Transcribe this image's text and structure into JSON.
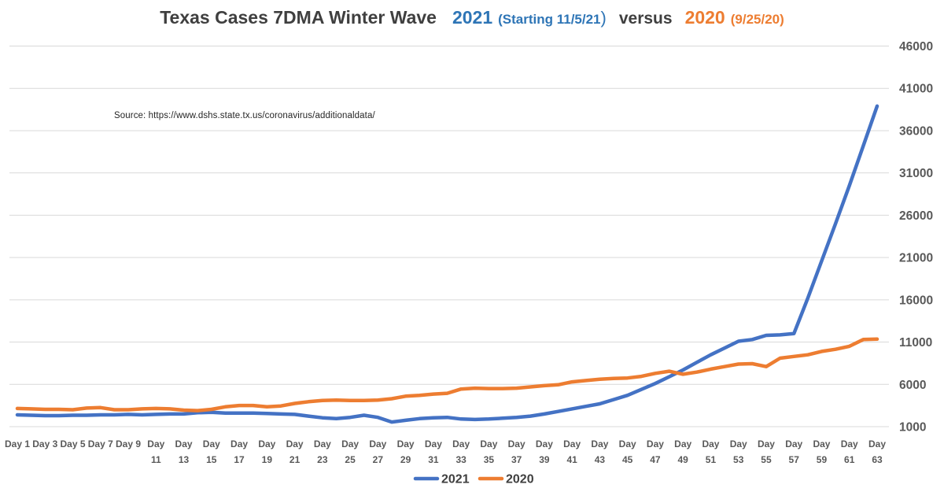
{
  "title": {
    "main": "Texas Cases 7DMA Winter Wave",
    "year1": "2021",
    "note1": "(Starting 11/5/21",
    "paren1": ")",
    "versus": "versus",
    "year2": "2020",
    "note2": "(9/25/20)"
  },
  "source_note": "Source:  https://www.dshs.state.tx.us/coronavirus/additionaldata/",
  "colors": {
    "series_2021": "#4472C4",
    "series_2020": "#ED7D31",
    "title_blue": "#2E75B6",
    "title_orange": "#ED7D31",
    "title_gray": "#3F3F3F",
    "axis_text": "#595959",
    "gridline": "#D9D9D9"
  },
  "chart_data": {
    "type": "line",
    "title": "Texas Cases 7DMA Winter Wave 2021 (Starting 11/5/21) versus 2020 (9/25/20)",
    "xlabel": "",
    "ylabel": "",
    "grid": true,
    "legend_position": "bottom",
    "x_label_prefix": "Day",
    "days": 63,
    "x_tick_days": [
      1,
      3,
      5,
      7,
      9,
      11,
      13,
      15,
      17,
      19,
      21,
      23,
      25,
      27,
      29,
      31,
      33,
      35,
      37,
      39,
      41,
      43,
      45,
      47,
      49,
      51,
      53,
      55,
      57,
      59,
      61,
      63
    ],
    "y_axis": {
      "min": 1000,
      "max": 46000,
      "step": 5000,
      "side": "right",
      "ticks": [
        1000,
        6000,
        11000,
        16000,
        21000,
        26000,
        31000,
        36000,
        41000,
        46000
      ]
    },
    "series": [
      {
        "name": "2021",
        "color": "#4472C4",
        "values": [
          2400,
          2350,
          2300,
          2300,
          2350,
          2350,
          2400,
          2400,
          2450,
          2400,
          2450,
          2500,
          2500,
          2650,
          2700,
          2600,
          2600,
          2600,
          2550,
          2500,
          2450,
          2250,
          2050,
          1950,
          2100,
          2350,
          2100,
          1550,
          1750,
          1950,
          2050,
          2100,
          1900,
          1850,
          1900,
          2000,
          2100,
          2250,
          2500,
          2800,
          3100,
          3400,
          3700,
          4200,
          4700,
          5400,
          6100,
          6900,
          7700,
          8600,
          9500,
          10300,
          11100,
          11300,
          11800,
          11850,
          12000,
          16200,
          20600,
          25000,
          29500,
          34200,
          38900
        ]
      },
      {
        "name": "2020",
        "color": "#ED7D31",
        "values": [
          3150,
          3100,
          3050,
          3050,
          3000,
          3200,
          3250,
          3000,
          3000,
          3100,
          3150,
          3100,
          2950,
          2900,
          3050,
          3350,
          3500,
          3500,
          3350,
          3450,
          3750,
          3950,
          4100,
          4150,
          4100,
          4100,
          4150,
          4300,
          4600,
          4700,
          4850,
          4950,
          5450,
          5550,
          5500,
          5500,
          5550,
          5700,
          5850,
          5950,
          6300,
          6450,
          6600,
          6700,
          6750,
          6950,
          7300,
          7550,
          7200,
          7450,
          7800,
          8100,
          8400,
          8450,
          8100,
          9100,
          9300,
          9500,
          9900,
          10150,
          10500,
          11300,
          11350
        ]
      }
    ]
  }
}
